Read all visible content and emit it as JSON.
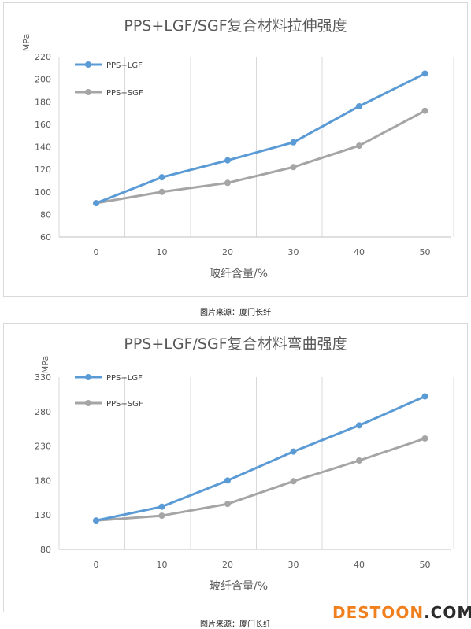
{
  "chart_data": [
    {
      "type": "line",
      "title": "PPS+LGF/SGF复合材料拉伸强度",
      "xlabel": "玻纤含量/%",
      "ylabel": "MPa",
      "categories": [
        "0",
        "10",
        "20",
        "30",
        "40",
        "50"
      ],
      "yticks": [
        "60",
        "80",
        "100",
        "120",
        "140",
        "160",
        "180",
        "200",
        "220"
      ],
      "ylim": [
        60,
        220
      ],
      "series": [
        {
          "name": "PPS+LGF",
          "color": "#5b9bd5",
          "values": [
            90,
            113,
            128,
            144,
            176,
            205
          ]
        },
        {
          "name": "PPS+SGF",
          "color": "#a5a5a5",
          "values": [
            90,
            100,
            108,
            122,
            141,
            172
          ]
        }
      ],
      "legend": "top-left",
      "grid": "vertical"
    },
    {
      "type": "line",
      "title": "PPS+LGF/SGF复合材料弯曲强度",
      "xlabel": "玻纤含量/%",
      "ylabel": "MPa",
      "categories": [
        "0",
        "10",
        "20",
        "30",
        "40",
        "50"
      ],
      "yticks": [
        "80",
        "130",
        "180",
        "230",
        "280",
        "330"
      ],
      "ylim": [
        80,
        330
      ],
      "series": [
        {
          "name": "PPS+LGF",
          "color": "#5b9bd5",
          "values": [
            122,
            142,
            180,
            222,
            260,
            302
          ]
        },
        {
          "name": "PPS+SGF",
          "color": "#a5a5a5",
          "values": [
            122,
            129,
            146,
            179,
            209,
            241
          ]
        }
      ],
      "legend": "top-left",
      "grid": "vertical"
    }
  ],
  "captions": {
    "chart1": "图片来源：厦门长纤",
    "chart2": "图片来源：厦门长纤"
  },
  "watermark": {
    "left": "DESTOON",
    "right": ".COM"
  }
}
